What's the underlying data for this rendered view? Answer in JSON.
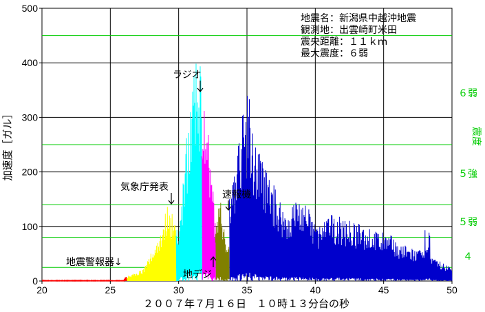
{
  "chart_data": {
    "type": "line",
    "xlabel": "２００７年７月１６日　１０時１３分台の秒",
    "ylabel": "加速度［ガル］",
    "y2label": "震度",
    "xlim": [
      20,
      50
    ],
    "ylim": [
      0,
      500
    ],
    "xticks": [
      20,
      25,
      30,
      35,
      40,
      45,
      50
    ],
    "yticks": [
      0,
      100,
      200,
      300,
      400,
      500
    ],
    "grid": true,
    "info_lines": [
      "地震名：新潟県中越沖地震",
      "観測地：出雲崎町米田",
      "震央距離：１１ｋｍ",
      "最大震度：６弱"
    ],
    "intensity_levels": [
      {
        "label": "",
        "gal": 25
      },
      {
        "label": "４",
        "gal": 25
      },
      {
        "label": "",
        "gal": 80
      },
      {
        "label": "５弱",
        "gal": 80
      },
      {
        "label": "",
        "gal": 140
      },
      {
        "label": "５強",
        "gal": 140
      },
      {
        "label": "",
        "gal": 250
      },
      {
        "label": "６弱",
        "gal": 250
      },
      {
        "label": "",
        "gal": 450
      }
    ],
    "annotations": [
      {
        "text": "地震警報器↓",
        "x": 26.2,
        "y": 0
      },
      {
        "text": "気象庁発表",
        "x": 29.5,
        "y": 150
      },
      {
        "text": "ラジオ",
        "x": 31.6,
        "y": 345
      },
      {
        "text": "速報機",
        "x": 33.7,
        "y": 125
      },
      {
        "text": "地デジ",
        "x": 32.6,
        "y": 35
      }
    ],
    "series": [
      {
        "segment": "red",
        "color": "#ff0000",
        "x_range": [
          20,
          26.2
        ]
      },
      {
        "segment": "yellow",
        "color": "#ffff00",
        "x_range": [
          26.2,
          29.8
        ]
      },
      {
        "segment": "cyan",
        "color": "#00ffff",
        "x_range": [
          29.8,
          31.7
        ]
      },
      {
        "segment": "magenta",
        "color": "#ff00ff",
        "x_range": [
          31.7,
          32.7
        ]
      },
      {
        "segment": "olive",
        "color": "#808000",
        "x_range": [
          32.7,
          33.7
        ]
      },
      {
        "segment": "blue",
        "color": "#0000cc",
        "x_range": [
          33.7,
          50
        ]
      }
    ],
    "peaks": [
      {
        "x": 29.2,
        "y": 150
      },
      {
        "x": 30.8,
        "y": 345
      },
      {
        "x": 31.5,
        "y": 430
      },
      {
        "x": 32.0,
        "y": 325
      },
      {
        "x": 32.9,
        "y": 130
      },
      {
        "x": 33.4,
        "y": 160
      },
      {
        "x": 35.0,
        "y": 360
      },
      {
        "x": 35.8,
        "y": 275
      },
      {
        "x": 40.0,
        "y": 160
      },
      {
        "x": 48.2,
        "y": 95
      }
    ]
  }
}
